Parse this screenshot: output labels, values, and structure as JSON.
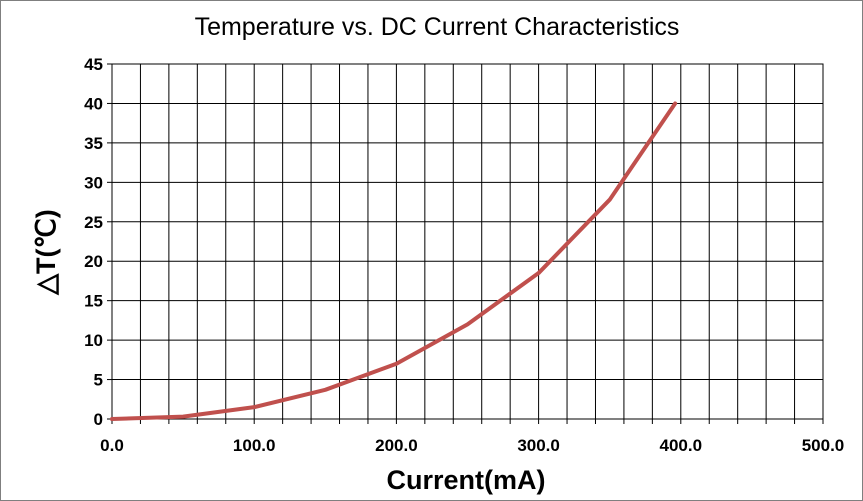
{
  "chart_data": {
    "type": "line",
    "title": "Temperature vs. DC Current Characteristics",
    "xlabel": "Current(mA)",
    "ylabel": "△T(℃)",
    "xlim": [
      0,
      500
    ],
    "ylim": [
      0,
      45
    ],
    "x_tick_labels": [
      "0.0",
      "100.0",
      "200.0",
      "300.0",
      "400.0",
      "500.0"
    ],
    "y_tick_labels": [
      "0",
      "5",
      "10",
      "15",
      "20",
      "25",
      "30",
      "35",
      "40",
      "45"
    ],
    "grid": true,
    "legend": "none",
    "series": [
      {
        "color": "#c0504d",
        "x": [
          0,
          50,
          100,
          150,
          200,
          250,
          300,
          350,
          396
        ],
        "y": [
          0,
          0.3,
          1.5,
          3.7,
          7.0,
          12.0,
          18.5,
          27.8,
          40.0
        ]
      }
    ]
  }
}
